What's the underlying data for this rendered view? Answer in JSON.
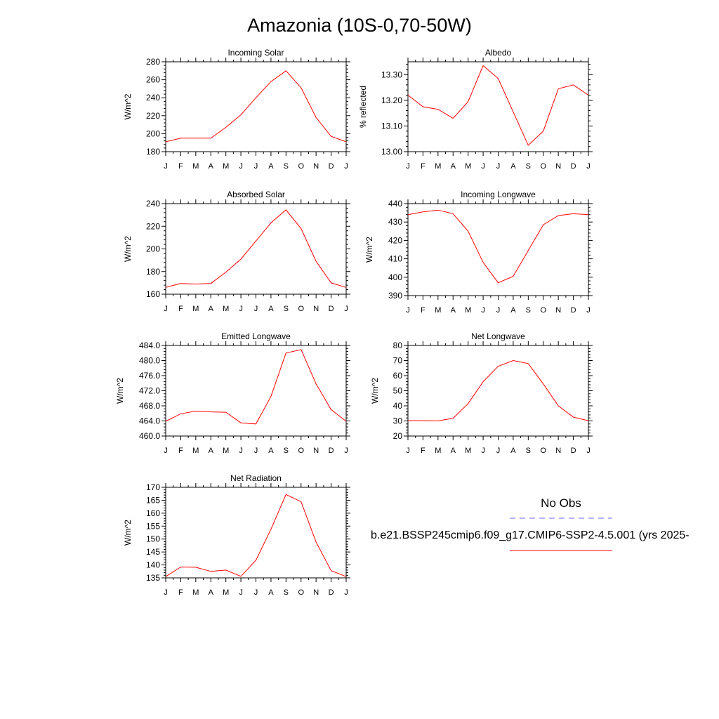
{
  "title": "Amazonia (10S-0,70-50W)",
  "months": [
    "J",
    "F",
    "M",
    "A",
    "M",
    "J",
    "J",
    "A",
    "S",
    "O",
    "N",
    "D",
    "J"
  ],
  "legend": {
    "obs_label": "No Obs",
    "model_label": "b.e21.BSSP245cmip6.f09_g17.CMIP6-SSP2-4.5.001 (yrs 2025-",
    "obs_color": "#6b6bff",
    "model_color": "#ff0000"
  },
  "chart_data": [
    {
      "type": "line",
      "title": "Incoming Solar",
      "ylabel": "W/m^2",
      "ylim": [
        180,
        280
      ],
      "yticks": [
        180,
        200,
        220,
        240,
        260,
        280
      ],
      "ytick_labels": [
        "180",
        "200",
        "220",
        "240",
        "260",
        "280"
      ],
      "x": [
        "J",
        "F",
        "M",
        "A",
        "M",
        "J",
        "J",
        "A",
        "S",
        "O",
        "N",
        "D",
        "J"
      ],
      "values": [
        191,
        195,
        195,
        195,
        207,
        221,
        240,
        258,
        270,
        251,
        218,
        197,
        191
      ],
      "color": "#ff0000"
    },
    {
      "type": "line",
      "title": "Albedo",
      "ylabel": "% reflected",
      "ylim": [
        13.0,
        13.35
      ],
      "yticks": [
        13.0,
        13.1,
        13.2,
        13.3
      ],
      "ytick_labels": [
        "13.00",
        "13.10",
        "13.20",
        "13.30"
      ],
      "x": [
        "J",
        "F",
        "M",
        "A",
        "M",
        "J",
        "J",
        "A",
        "S",
        "O",
        "N",
        "D",
        "J"
      ],
      "values": [
        13.22,
        13.175,
        13.165,
        13.13,
        13.195,
        13.335,
        13.285,
        13.155,
        13.025,
        13.08,
        13.245,
        13.26,
        13.22
      ],
      "color": "#ff0000"
    },
    {
      "type": "line",
      "title": "Absorbed Solar",
      "ylabel": "W/m^2",
      "ylim": [
        160,
        240
      ],
      "yticks": [
        160,
        180,
        200,
        220,
        240
      ],
      "ytick_labels": [
        "160",
        "180",
        "200",
        "220",
        "240"
      ],
      "x": [
        "J",
        "F",
        "M",
        "A",
        "M",
        "J",
        "J",
        "A",
        "S",
        "O",
        "N",
        "D",
        "J"
      ],
      "values": [
        166,
        169.5,
        169,
        169.5,
        179.5,
        191,
        207,
        223,
        234.5,
        218,
        189,
        170,
        166
      ],
      "color": "#ff0000"
    },
    {
      "type": "line",
      "title": "Incoming Longwave",
      "ylabel": "W/m^2",
      "ylim": [
        390,
        440
      ],
      "yticks": [
        390,
        400,
        410,
        420,
        430,
        440
      ],
      "ytick_labels": [
        "390",
        "400",
        "410",
        "420",
        "430",
        "440"
      ],
      "x": [
        "J",
        "F",
        "M",
        "A",
        "M",
        "J",
        "J",
        "A",
        "S",
        "O",
        "N",
        "D",
        "J"
      ],
      "values": [
        434,
        435.5,
        436.5,
        434.5,
        425,
        408,
        397,
        400.5,
        414.5,
        428.5,
        433.5,
        434.5,
        434
      ],
      "color": "#ff0000"
    },
    {
      "type": "line",
      "title": "Emitted Longwave",
      "ylabel": "W/m^2",
      "ylim": [
        460,
        484
      ],
      "yticks": [
        460,
        464,
        468,
        472,
        476,
        480,
        484
      ],
      "ytick_labels": [
        "460.0",
        "464.0",
        "468.0",
        "472.0",
        "476.0",
        "480.0",
        "484.0"
      ],
      "x": [
        "J",
        "F",
        "M",
        "A",
        "M",
        "J",
        "J",
        "A",
        "S",
        "O",
        "N",
        "D",
        "J"
      ],
      "values": [
        463.9,
        465.9,
        466.6,
        466.4,
        466.3,
        463.5,
        463.2,
        470.5,
        482.0,
        482.9,
        473.8,
        467.0,
        463.9
      ],
      "color": "#ff0000"
    },
    {
      "type": "line",
      "title": "Net Longwave",
      "ylabel": "W/m^2",
      "ylim": [
        20,
        80
      ],
      "yticks": [
        20,
        30,
        40,
        50,
        60,
        70,
        80
      ],
      "ytick_labels": [
        "20",
        "30",
        "40",
        "50",
        "60",
        "70",
        "80"
      ],
      "x": [
        "J",
        "F",
        "M",
        "A",
        "M",
        "J",
        "J",
        "A",
        "S",
        "O",
        "N",
        "D",
        "J"
      ],
      "values": [
        30.2,
        30.2,
        30,
        31.8,
        41.5,
        56,
        66.2,
        70,
        68,
        54.5,
        40,
        32.5,
        30.2
      ],
      "color": "#ff0000"
    },
    {
      "type": "line",
      "title": "Net Radiation",
      "ylabel": "W/m^2",
      "ylim": [
        135,
        170
      ],
      "yticks": [
        135,
        140,
        145,
        150,
        155,
        160,
        165,
        170
      ],
      "ytick_labels": [
        "135",
        "140",
        "145",
        "150",
        "155",
        "160",
        "165",
        "170"
      ],
      "x": [
        "J",
        "F",
        "M",
        "A",
        "M",
        "J",
        "J",
        "A",
        "S",
        "O",
        "N",
        "D",
        "J"
      ],
      "values": [
        135.5,
        139.2,
        139.1,
        137.5,
        138,
        135.6,
        141.8,
        153.8,
        167.2,
        164.4,
        148.8,
        137.8,
        135.5
      ],
      "color": "#ff0000"
    }
  ]
}
